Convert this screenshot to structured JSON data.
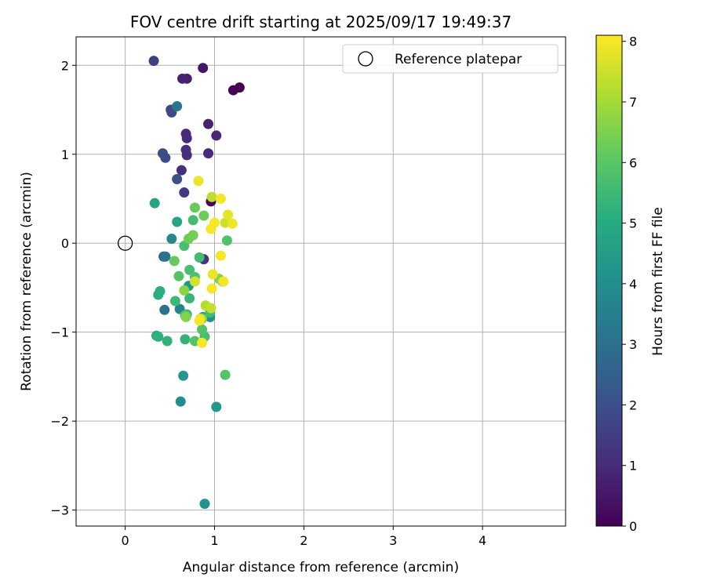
{
  "chart_data": {
    "type": "scatter",
    "title": "FOV centre drift starting at 2025/09/17 19:49:37",
    "xlabel": "Angular distance from reference (arcmin)",
    "ylabel": "Rotation from reference (arcmin)",
    "xlim": [
      -0.55,
      4.93
    ],
    "ylim": [
      -3.18,
      2.32
    ],
    "xticks": [
      0,
      1,
      2,
      3,
      4
    ],
    "yticks": [
      -3,
      -2,
      -1,
      0,
      1,
      2
    ],
    "grid": true,
    "legend": {
      "position": "top-right",
      "entries": [
        "Reference platepar"
      ]
    },
    "reference_point": {
      "x": 0,
      "y": 0
    },
    "colorbar": {
      "label": "Hours from first FF file",
      "min": 0,
      "max": 8.1,
      "ticks": [
        0,
        1,
        2,
        3,
        4,
        5,
        6,
        7,
        8
      ],
      "colormap": "viridis"
    },
    "points": [
      {
        "x": 1.28,
        "y": 1.75,
        "c": 0.05
      },
      {
        "x": 1.21,
        "y": 1.72,
        "c": 0.1
      },
      {
        "x": 0.96,
        "y": 0.47,
        "c": 0.2
      },
      {
        "x": 0.87,
        "y": 1.97,
        "c": 0.5
      },
      {
        "x": 0.69,
        "y": 1.85,
        "c": 0.7
      },
      {
        "x": 0.64,
        "y": 1.85,
        "c": 0.8
      },
      {
        "x": 0.93,
        "y": 1.34,
        "c": 0.8
      },
      {
        "x": 1.02,
        "y": 1.21,
        "c": 0.9
      },
      {
        "x": 0.68,
        "y": 1.23,
        "c": 1.0
      },
      {
        "x": 0.69,
        "y": 1.18,
        "c": 1.0
      },
      {
        "x": 0.68,
        "y": 1.05,
        "c": 1.1
      },
      {
        "x": 0.69,
        "y": 0.99,
        "c": 1.1
      },
      {
        "x": 0.93,
        "y": 1.01,
        "c": 1.0
      },
      {
        "x": 0.63,
        "y": 0.82,
        "c": 1.1
      },
      {
        "x": 0.66,
        "y": 0.57,
        "c": 1.3
      },
      {
        "x": 0.88,
        "y": -0.18,
        "c": 1.2
      },
      {
        "x": 0.32,
        "y": 2.05,
        "c": 1.6
      },
      {
        "x": 0.51,
        "y": 1.5,
        "c": 1.8
      },
      {
        "x": 0.52,
        "y": 1.47,
        "c": 1.8
      },
      {
        "x": 0.42,
        "y": 1.01,
        "c": 1.9
      },
      {
        "x": 0.45,
        "y": 0.96,
        "c": 1.9
      },
      {
        "x": 0.58,
        "y": 0.72,
        "c": 2.0
      },
      {
        "x": 0.58,
        "y": 1.54,
        "c": 3.2
      },
      {
        "x": 0.43,
        "y": -0.15,
        "c": 2.8
      },
      {
        "x": 0.45,
        "y": -0.15,
        "c": 3.1
      },
      {
        "x": 0.44,
        "y": -0.75,
        "c": 3.0
      },
      {
        "x": 0.61,
        "y": -0.74,
        "c": 3.6
      },
      {
        "x": 0.52,
        "y": 0.05,
        "c": 3.8
      },
      {
        "x": 0.62,
        "y": -1.78,
        "c": 4.0
      },
      {
        "x": 0.65,
        "y": -1.49,
        "c": 4.3
      },
      {
        "x": 0.89,
        "y": -2.93,
        "c": 4.2
      },
      {
        "x": 1.02,
        "y": -1.84,
        "c": 4.3
      },
      {
        "x": 0.95,
        "y": -0.83,
        "c": 4.0
      },
      {
        "x": 0.71,
        "y": -0.48,
        "c": 4.4
      },
      {
        "x": 0.33,
        "y": 0.45,
        "c": 4.8
      },
      {
        "x": 0.58,
        "y": 0.24,
        "c": 4.8
      },
      {
        "x": 0.87,
        "y": -0.83,
        "c": 4.6
      },
      {
        "x": 0.39,
        "y": -0.54,
        "c": 5.1
      },
      {
        "x": 0.37,
        "y": -0.58,
        "c": 5.1
      },
      {
        "x": 0.35,
        "y": -1.04,
        "c": 5.0
      },
      {
        "x": 0.37,
        "y": -1.05,
        "c": 5.2
      },
      {
        "x": 0.47,
        "y": -1.1,
        "c": 5.3
      },
      {
        "x": 0.67,
        "y": -1.08,
        "c": 5.3
      },
      {
        "x": 0.56,
        "y": -0.65,
        "c": 5.5
      },
      {
        "x": 0.69,
        "y": -0.8,
        "c": 5.4
      },
      {
        "x": 0.67,
        "y": -0.81,
        "c": 5.8
      },
      {
        "x": 0.72,
        "y": -0.62,
        "c": 5.4
      },
      {
        "x": 0.6,
        "y": -0.37,
        "c": 5.9
      },
      {
        "x": 0.72,
        "y": -0.3,
        "c": 5.7
      },
      {
        "x": 0.66,
        "y": -0.03,
        "c": 5.7
      },
      {
        "x": 0.76,
        "y": 0.26,
        "c": 5.6
      },
      {
        "x": 0.83,
        "y": -0.16,
        "c": 5.6
      },
      {
        "x": 0.78,
        "y": -0.38,
        "c": 5.8
      },
      {
        "x": 0.78,
        "y": -1.1,
        "c": 5.9
      },
      {
        "x": 0.89,
        "y": -1.05,
        "c": 5.7
      },
      {
        "x": 0.86,
        "y": -0.97,
        "c": 5.9
      },
      {
        "x": 0.95,
        "y": -0.78,
        "c": 5.6
      },
      {
        "x": 1.12,
        "y": -1.48,
        "c": 5.9
      },
      {
        "x": 1.14,
        "y": 0.03,
        "c": 5.8
      },
      {
        "x": 0.71,
        "y": 0.05,
        "c": 6.3
      },
      {
        "x": 0.55,
        "y": -0.2,
        "c": 6.2
      },
      {
        "x": 0.76,
        "y": 0.09,
        "c": 6.4
      },
      {
        "x": 0.78,
        "y": 0.4,
        "c": 6.2
      },
      {
        "x": 0.88,
        "y": 0.31,
        "c": 6.3
      },
      {
        "x": 1.09,
        "y": -0.43,
        "c": 6.1
      },
      {
        "x": 0.66,
        "y": -0.53,
        "c": 6.7
      },
      {
        "x": 0.68,
        "y": -0.83,
        "c": 6.6
      },
      {
        "x": 0.86,
        "y": -0.85,
        "c": 6.5
      },
      {
        "x": 1.05,
        "y": -0.4,
        "c": 6.6
      },
      {
        "x": 0.9,
        "y": -0.7,
        "c": 7.2
      },
      {
        "x": 0.96,
        "y": -0.73,
        "c": 7.4
      },
      {
        "x": 0.97,
        "y": 0.52,
        "c": 7.3
      },
      {
        "x": 1.12,
        "y": 0.23,
        "c": 7.5
      },
      {
        "x": 0.78,
        "y": -0.43,
        "c": 7.6
      },
      {
        "x": 0.84,
        "y": -0.85,
        "c": 7.7
      },
      {
        "x": 0.82,
        "y": 0.7,
        "c": 7.9
      },
      {
        "x": 1.07,
        "y": 0.5,
        "c": 8.0
      },
      {
        "x": 1.15,
        "y": 0.32,
        "c": 7.8
      },
      {
        "x": 1.2,
        "y": 0.22,
        "c": 7.9
      },
      {
        "x": 1.0,
        "y": 0.23,
        "c": 8.0
      },
      {
        "x": 0.96,
        "y": 0.16,
        "c": 8.0
      },
      {
        "x": 1.07,
        "y": -0.14,
        "c": 8.0
      },
      {
        "x": 0.98,
        "y": -0.35,
        "c": 7.9
      },
      {
        "x": 1.1,
        "y": -0.43,
        "c": 8.0
      },
      {
        "x": 0.97,
        "y": -0.51,
        "c": 8.0
      },
      {
        "x": 0.83,
        "y": -0.87,
        "c": 8.0
      },
      {
        "x": 0.86,
        "y": -1.12,
        "c": 8.0
      }
    ]
  }
}
